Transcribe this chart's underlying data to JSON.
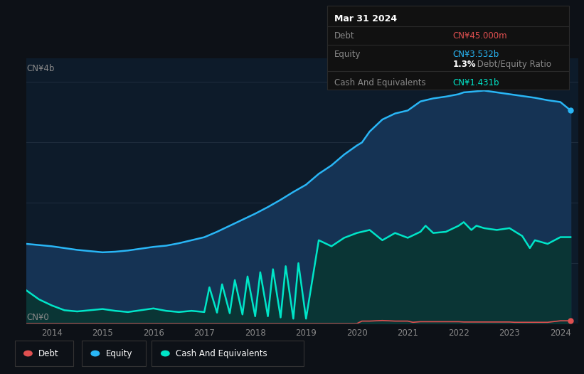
{
  "background_color": "#0d1117",
  "plot_bg_color": "#0d1b2a",
  "title_box": {
    "date": "Mar 31 2024",
    "debt_label": "Debt",
    "debt_value": "CN¥45.000m",
    "equity_label": "Equity",
    "equity_value": "CN¥3.532b",
    "ratio_value": "1.3%",
    "ratio_label": " Debt/Equity Ratio",
    "cash_label": "Cash And Equivalents",
    "cash_value": "CN¥1.431b"
  },
  "ylabel_top": "CN¥4b",
  "ylabel_bottom": "CN¥0",
  "x_ticks": [
    2014,
    2015,
    2016,
    2017,
    2018,
    2019,
    2020,
    2021,
    2022,
    2023,
    2024
  ],
  "ylim": [
    0,
    4.4
  ],
  "equity_color": "#29b6f6",
  "equity_fill": "#153354",
  "cash_color": "#00e5c8",
  "cash_fill": "#0a3535",
  "debt_color": "#e05050",
  "legend": [
    "Debt",
    "Equity",
    "Cash And Equivalents"
  ],
  "legend_colors": [
    "#e05050",
    "#29b6f6",
    "#00e5c8"
  ],
  "equity_data_x": [
    2013.5,
    2013.75,
    2014.0,
    2014.25,
    2014.5,
    2014.75,
    2015.0,
    2015.25,
    2015.5,
    2015.75,
    2016.0,
    2016.25,
    2016.5,
    2016.75,
    2017.0,
    2017.25,
    2017.5,
    2017.75,
    2018.0,
    2018.25,
    2018.5,
    2018.75,
    2019.0,
    2019.25,
    2019.5,
    2019.75,
    2020.0,
    2020.1,
    2020.25,
    2020.5,
    2020.75,
    2021.0,
    2021.25,
    2021.5,
    2021.75,
    2022.0,
    2022.1,
    2022.25,
    2022.5,
    2022.75,
    2023.0,
    2023.25,
    2023.5,
    2023.75,
    2024.0,
    2024.2
  ],
  "equity_data_y": [
    1.32,
    1.3,
    1.28,
    1.25,
    1.22,
    1.2,
    1.18,
    1.19,
    1.21,
    1.24,
    1.27,
    1.29,
    1.33,
    1.38,
    1.43,
    1.52,
    1.62,
    1.72,
    1.82,
    1.93,
    2.05,
    2.18,
    2.3,
    2.48,
    2.62,
    2.8,
    2.95,
    3.0,
    3.18,
    3.38,
    3.48,
    3.53,
    3.68,
    3.73,
    3.76,
    3.8,
    3.83,
    3.84,
    3.86,
    3.83,
    3.8,
    3.77,
    3.74,
    3.7,
    3.67,
    3.532
  ],
  "cash_data_x": [
    2013.5,
    2013.75,
    2014.0,
    2014.25,
    2014.5,
    2014.75,
    2015.0,
    2015.25,
    2015.5,
    2015.75,
    2016.0,
    2016.25,
    2016.5,
    2016.75,
    2017.0,
    2017.1,
    2017.25,
    2017.35,
    2017.5,
    2017.6,
    2017.75,
    2017.85,
    2018.0,
    2018.1,
    2018.25,
    2018.35,
    2018.5,
    2018.6,
    2018.75,
    2018.85,
    2019.0,
    2019.25,
    2019.5,
    2019.75,
    2020.0,
    2020.25,
    2020.5,
    2020.75,
    2021.0,
    2021.25,
    2021.35,
    2021.5,
    2021.75,
    2022.0,
    2022.1,
    2022.25,
    2022.35,
    2022.5,
    2022.75,
    2023.0,
    2023.25,
    2023.4,
    2023.5,
    2023.75,
    2024.0,
    2024.2
  ],
  "cash_data_y": [
    0.55,
    0.4,
    0.3,
    0.22,
    0.2,
    0.22,
    0.24,
    0.21,
    0.19,
    0.22,
    0.25,
    0.21,
    0.19,
    0.21,
    0.19,
    0.6,
    0.18,
    0.65,
    0.17,
    0.72,
    0.15,
    0.78,
    0.12,
    0.85,
    0.12,
    0.9,
    0.1,
    0.95,
    0.08,
    1.0,
    0.08,
    1.38,
    1.28,
    1.42,
    1.5,
    1.55,
    1.38,
    1.5,
    1.42,
    1.52,
    1.62,
    1.5,
    1.52,
    1.62,
    1.68,
    1.55,
    1.62,
    1.58,
    1.55,
    1.58,
    1.45,
    1.25,
    1.38,
    1.32,
    1.431,
    1.431
  ],
  "debt_data_x": [
    2013.5,
    2014.0,
    2015.0,
    2016.0,
    2017.0,
    2018.0,
    2019.0,
    2019.5,
    2019.75,
    2020.0,
    2020.1,
    2020.25,
    2020.5,
    2020.75,
    2021.0,
    2021.1,
    2021.25,
    2021.5,
    2021.75,
    2022.0,
    2022.1,
    2022.25,
    2022.35,
    2022.5,
    2022.75,
    2023.0,
    2023.1,
    2023.25,
    2023.5,
    2023.75,
    2024.0,
    2024.2
  ],
  "debt_data_y": [
    0.0,
    0.0,
    0.0,
    0.0,
    0.0,
    0.0,
    0.0,
    0.0,
    0.0,
    0.0,
    0.04,
    0.04,
    0.05,
    0.04,
    0.04,
    0.02,
    0.03,
    0.03,
    0.03,
    0.03,
    0.025,
    0.025,
    0.025,
    0.025,
    0.025,
    0.025,
    0.02,
    0.02,
    0.02,
    0.02,
    0.045,
    0.045
  ]
}
